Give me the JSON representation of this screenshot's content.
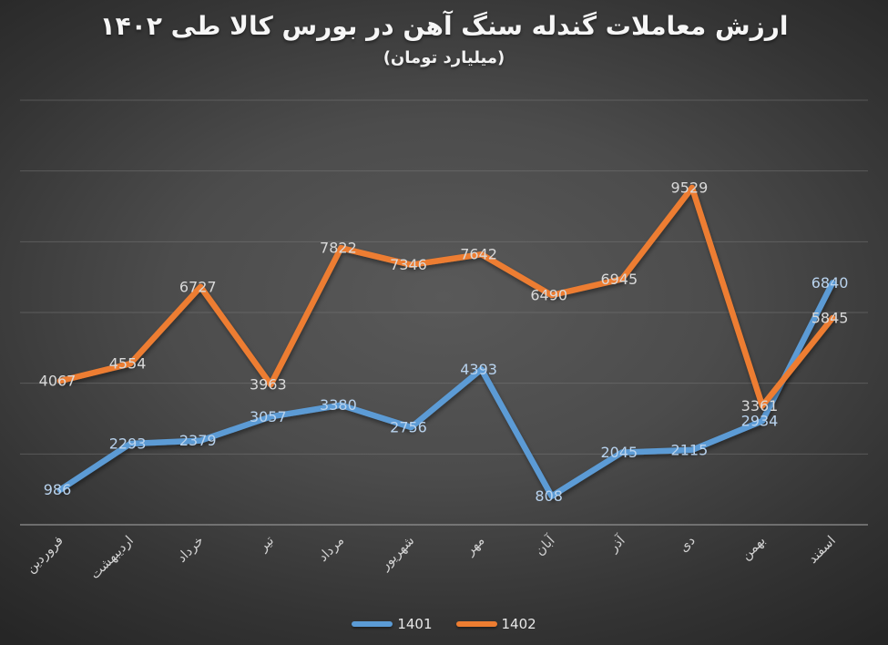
{
  "title": "ارزش معاملات گندله سنگ آهن در بورس کالا طی ۱۴۰۲",
  "subtitle": "(میلیارد تومان)",
  "colors": {
    "background_center": "#585858",
    "background_edge": "#242424",
    "gridline": "#7a7a7a",
    "axis_line": "#9b9b9b",
    "title_text": "#f6f6f6",
    "month_label": "#d2d2d2",
    "legend_text": "#e8e8e8",
    "series_1401": "#5B9BD5",
    "series_1402": "#ED7D31"
  },
  "chart_data": {
    "type": "line",
    "title": "ارزش معاملات گندله سنگ آهن در بورس کالا طی ۱۴۰۲",
    "subtitle": "(میلیارد تومان)",
    "categories": [
      "فروردین",
      "اردیبهشت",
      "خرداد",
      "تیر",
      "مرداد",
      "شهریور",
      "مهر",
      "آبان",
      "آذر",
      "دی",
      "بهمن",
      "اسفند"
    ],
    "series": [
      {
        "name": "1401",
        "color": "#5B9BD5",
        "label_color": "#b9d3ee",
        "values": [
          986,
          2293,
          2379,
          3057,
          3380,
          2756,
          4393,
          808,
          2045,
          2115,
          2934,
          6840
        ]
      },
      {
        "name": "1402",
        "color": "#ED7D31",
        "label_color": "#d9d9d9",
        "values": [
          4067,
          4554,
          6727,
          3963,
          7822,
          7346,
          7642,
          6490,
          6945,
          9529,
          3361,
          5845
        ]
      }
    ],
    "ylim": [
      0,
      12000
    ],
    "grid_step": 2000,
    "grid": true,
    "y_axis_labels_visible": false,
    "data_labels": "centered-on-points",
    "legend_position": "bottom"
  },
  "legend": {
    "items": [
      {
        "label": "1401",
        "color": "#5B9BD5"
      },
      {
        "label": "1402",
        "color": "#ED7D31"
      }
    ]
  }
}
